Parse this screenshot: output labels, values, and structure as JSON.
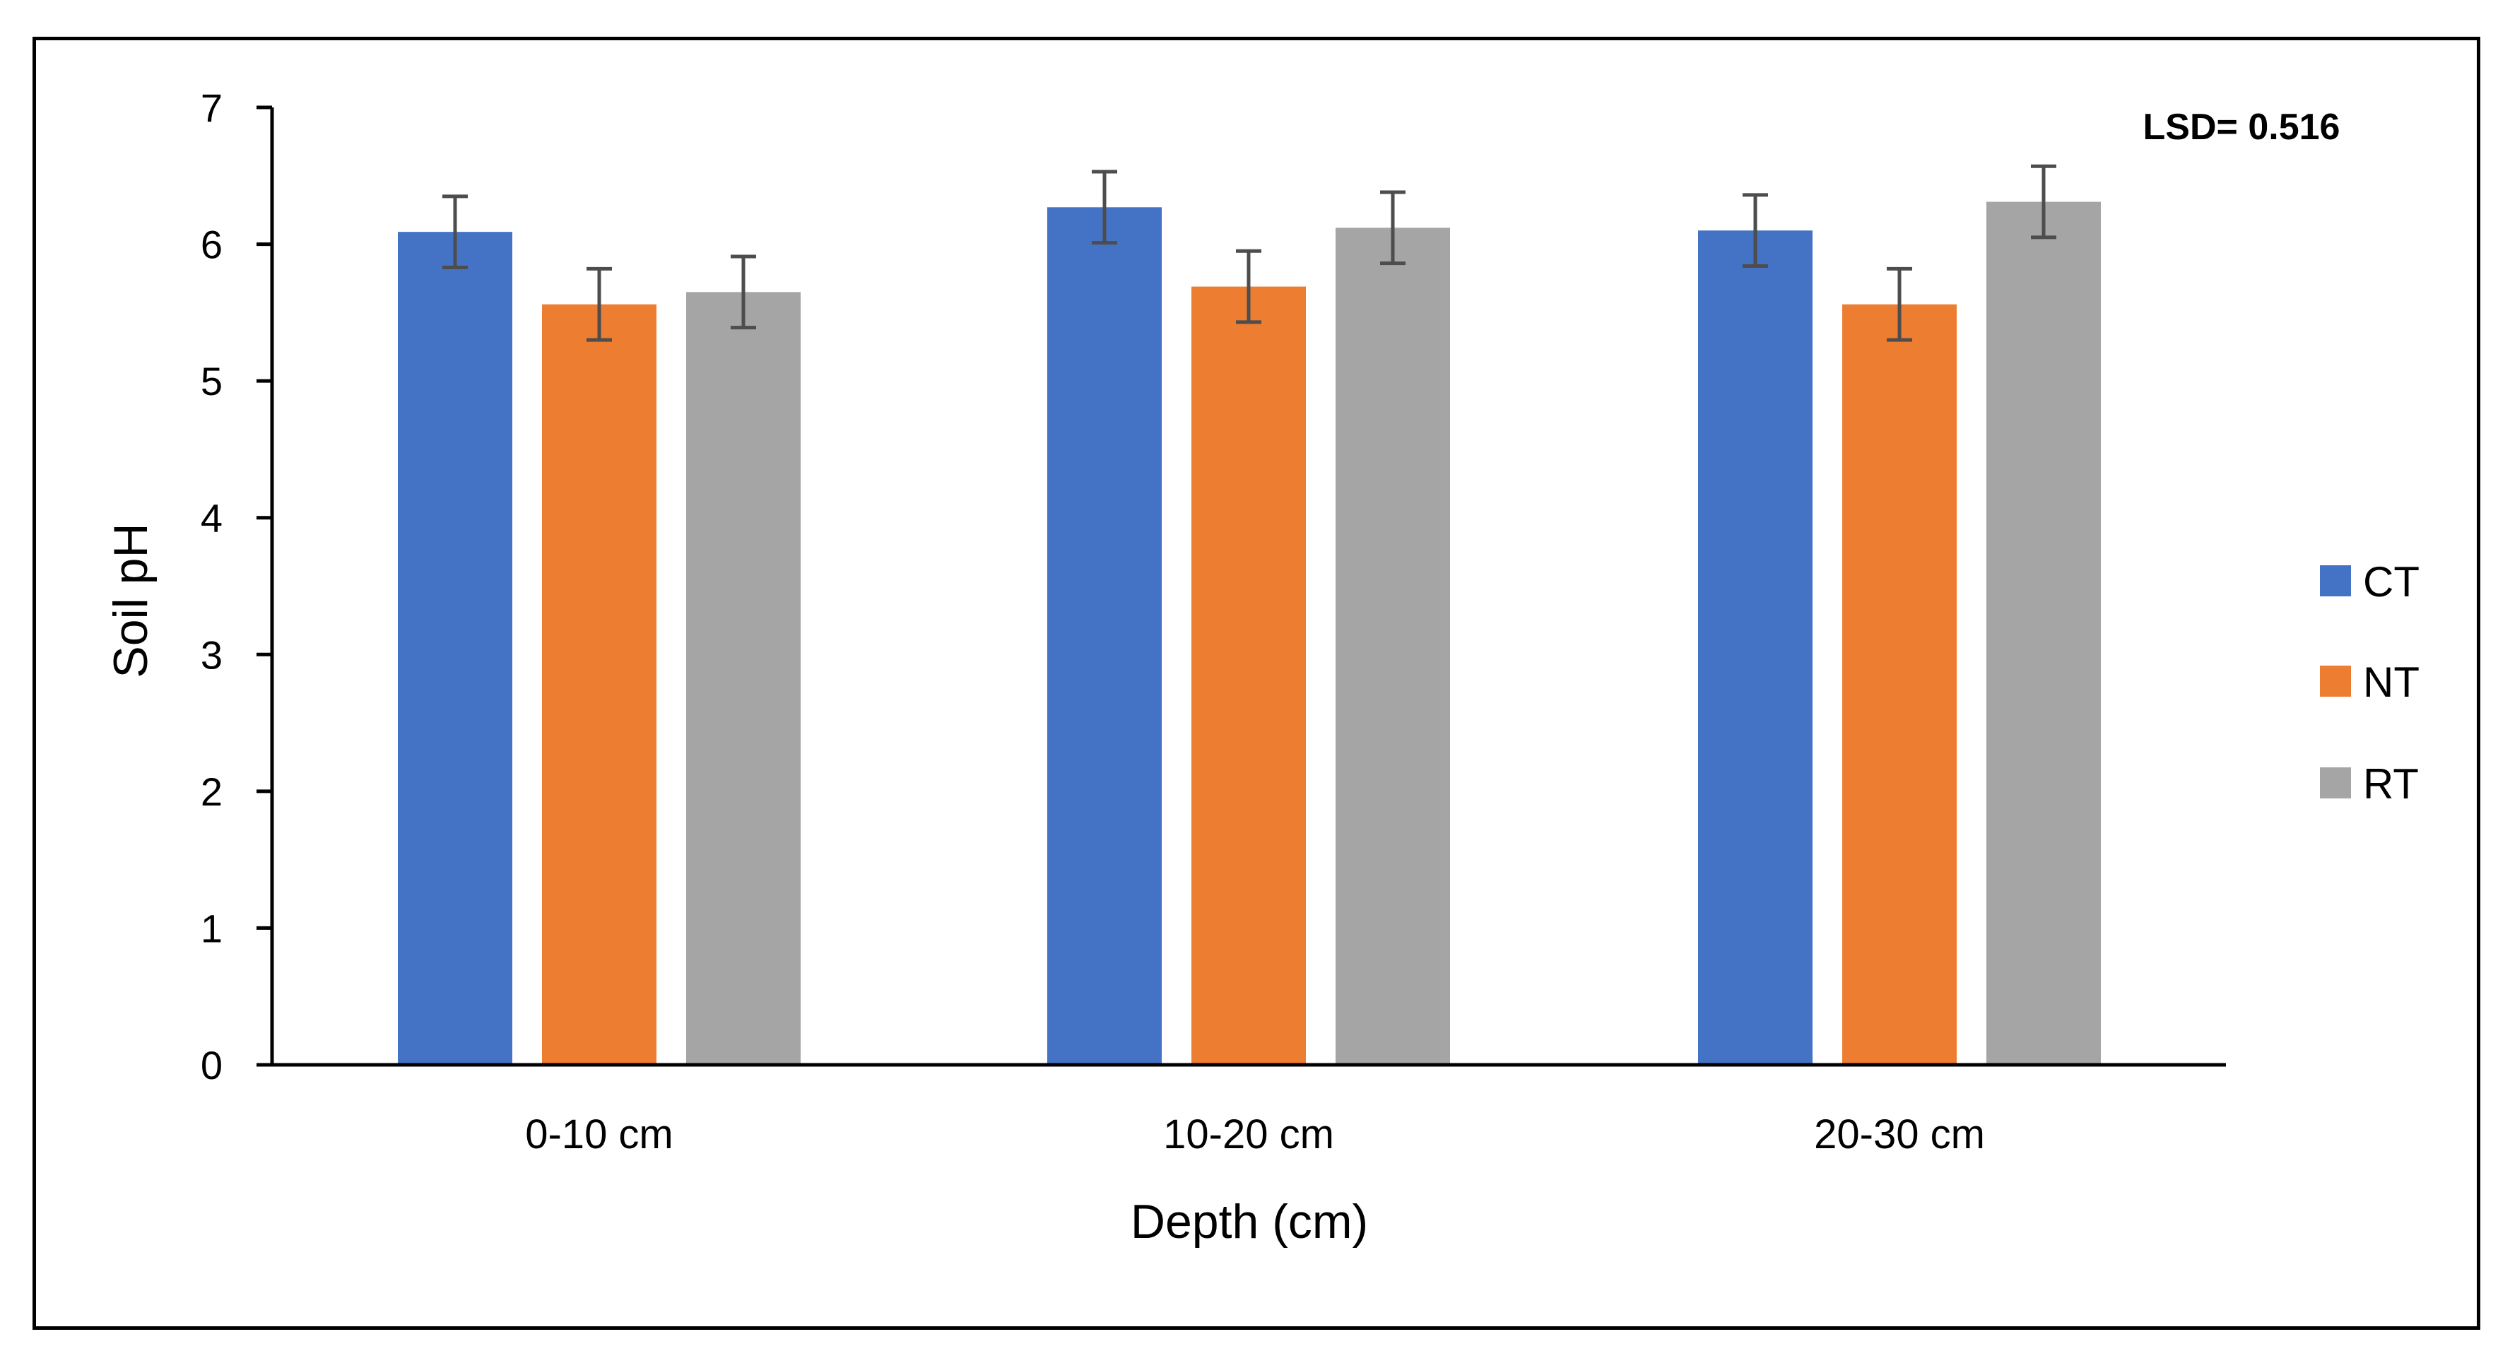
{
  "chart_data": {
    "type": "bar",
    "title": "",
    "xlabel": "Depth (cm)",
    "ylabel": "Soil pH",
    "ylim": [
      0,
      7
    ],
    "yticks": [
      "0",
      "1",
      "2",
      "3",
      "4",
      "5",
      "6",
      "7"
    ],
    "grid": false,
    "legend_position": "right",
    "categories": [
      "0-10 cm",
      "10-20 cm",
      "20-30 cm"
    ],
    "series": [
      {
        "name": "CT",
        "color": "#4472C4",
        "values": [
          6.09,
          6.27,
          6.1
        ],
        "errors": [
          0.26,
          0.26,
          0.26
        ]
      },
      {
        "name": "NT",
        "color": "#ED7D31",
        "values": [
          5.56,
          5.69,
          5.56
        ],
        "errors": [
          0.26,
          0.26,
          0.26
        ]
      },
      {
        "name": "RT",
        "color": "#A5A5A5",
        "values": [
          5.65,
          6.12,
          6.31
        ],
        "errors": [
          0.26,
          0.26,
          0.26
        ]
      }
    ],
    "annotation": "LSD= 0.516"
  }
}
